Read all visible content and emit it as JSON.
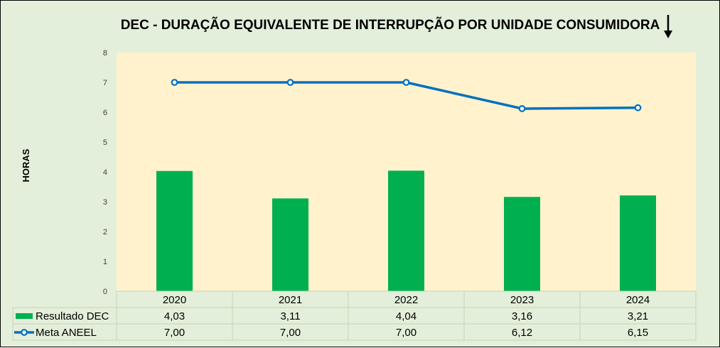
{
  "chart_data": {
    "type": "bar",
    "title": "DEC - DURAÇÃO EQUIVALENTE DE INTERRUPÇÃO POR UNIDADE CONSUMIDORA",
    "ylabel": "HORAS",
    "ylim": [
      0,
      8
    ],
    "yticks": [
      0,
      1,
      2,
      3,
      4,
      5,
      6,
      7,
      8
    ],
    "grid": false,
    "legend": "data-table",
    "categories": [
      "2020",
      "2021",
      "2022",
      "2023",
      "2024"
    ],
    "series": [
      {
        "name": "Resultado DEC",
        "type": "bar",
        "color": "#00b050",
        "values": [
          4.03,
          3.11,
          4.04,
          3.16,
          3.21
        ],
        "labels": [
          "4,03",
          "3,11",
          "4,04",
          "3,16",
          "3,21"
        ]
      },
      {
        "name": "Meta ANEEL",
        "type": "line",
        "color": "#0070c0",
        "values": [
          7.0,
          7.0,
          7.0,
          6.12,
          6.15
        ],
        "labels": [
          "7,00",
          "7,00",
          "7,00",
          "6,12",
          "6,15"
        ]
      }
    ],
    "arrow_icon": "down-arrow-icon",
    "colors": {
      "plot_background": "#fff2cc",
      "chart_background": "#e3efda"
    }
  }
}
